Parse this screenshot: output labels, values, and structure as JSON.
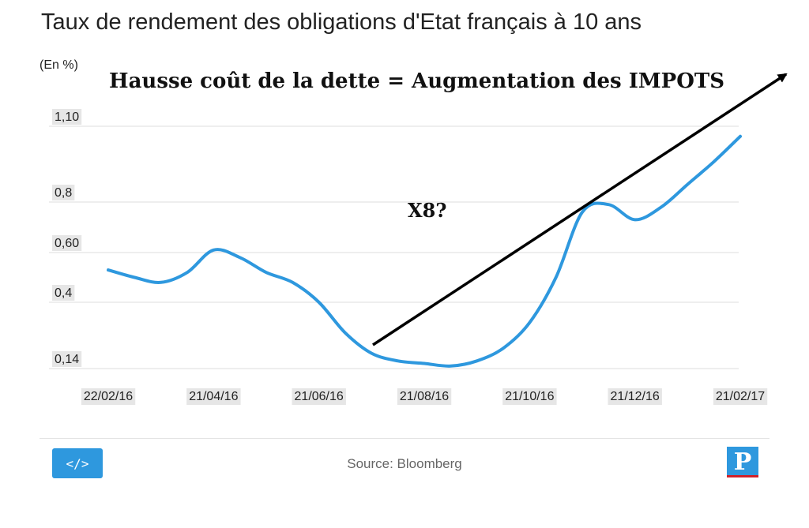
{
  "header": {
    "title": "Taux de rendement des obligations d'Etat français à 10 ans",
    "unit": "(En %)"
  },
  "annotations": {
    "headline": "Hausse coût de la dette = Augmentation des IMPOTS",
    "multiplier": "X8?"
  },
  "footer": {
    "embed_label": "</>",
    "source": "Source: Bloomberg",
    "logo_letter": "P"
  },
  "colors": {
    "line": "#2e98de",
    "arrow": "#000000",
    "grid": "#dcdcdc",
    "button": "#2e98de",
    "logo_accent": "#d0212a"
  },
  "chart_data": {
    "type": "line",
    "title": "Taux de rendement des obligations d'Etat français à 10 ans",
    "ylabel": "(En %)",
    "xlabel": "",
    "yticks": [
      {
        "value": 0.14,
        "label": "0,14"
      },
      {
        "value": 0.4,
        "label": "0,4"
      },
      {
        "value": 0.6,
        "label": "0,60"
      },
      {
        "value": 0.8,
        "label": "0,8"
      },
      {
        "value": 1.1,
        "label": "1,10"
      }
    ],
    "ylim": [
      0.1,
      1.1
    ],
    "categories": [
      "22/02/16",
      "21/04/16",
      "21/06/16",
      "21/08/16",
      "21/10/16",
      "21/12/16",
      "21/02/17"
    ],
    "x": [
      0,
      0.25,
      0.5,
      0.75,
      1,
      1.25,
      1.5,
      1.75,
      2,
      2.25,
      2.5,
      2.75,
      3,
      3.25,
      3.5,
      3.75,
      4,
      4.25,
      4.5,
      4.75,
      5,
      5.25,
      5.5,
      5.75,
      6
    ],
    "series": [
      {
        "values": [
          0.53,
          0.5,
          0.48,
          0.52,
          0.61,
          0.58,
          0.52,
          0.48,
          0.4,
          0.28,
          0.2,
          0.17,
          0.16,
          0.15,
          0.17,
          0.22,
          0.32,
          0.5,
          0.76,
          0.79,
          0.73,
          0.78,
          0.87,
          0.96,
          1.06
        ]
      }
    ],
    "grid": true,
    "legend": "none"
  }
}
